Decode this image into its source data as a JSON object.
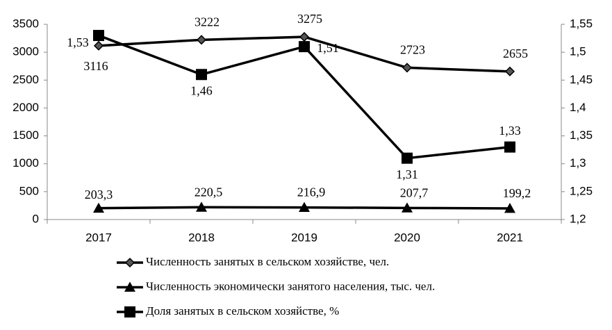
{
  "chart_data": {
    "type": "line",
    "categories": [
      "2017",
      "2018",
      "2019",
      "2020",
      "2021"
    ],
    "series": [
      {
        "name": "Численность занятых в сельском хозяйстве, чел.",
        "color": "#000000",
        "marker": "diamond",
        "axis": "y",
        "values": [
          3116,
          3222,
          3275,
          2723,
          2655
        ]
      },
      {
        "name": "Численность экономически занятого населения, тыс. чел.",
        "color": "#000000",
        "marker": "triangle",
        "axis": "y",
        "values": [
          203.3,
          220.5,
          216.9,
          207.7,
          199.2
        ],
        "value_labels": [
          "203,3",
          "220,5",
          "216,9",
          "207,7",
          "199,2"
        ]
      },
      {
        "name": "Доля занятых в сельском хозяйстве, %",
        "color": "#000000",
        "marker": "square",
        "axis": "y2",
        "values": [
          1.53,
          1.46,
          1.51,
          1.31,
          1.33
        ],
        "value_labels": [
          "1,53",
          "1,46",
          "1,51",
          "1,31",
          "1,33"
        ]
      }
    ],
    "ylim": [
      0,
      3500
    ],
    "yticks": [
      0,
      500,
      1000,
      1500,
      2000,
      2500,
      3000,
      3500
    ],
    "y2lim": [
      1.2,
      1.55
    ],
    "y2ticks": [
      {
        "value": 1.2,
        "label": "1,2"
      },
      {
        "value": 1.25,
        "label": "1,25"
      },
      {
        "value": 1.3,
        "label": "1,3"
      },
      {
        "value": 1.35,
        "label": "1,35"
      },
      {
        "value": 1.4,
        "label": "1,4"
      },
      {
        "value": 1.45,
        "label": "1,45"
      },
      {
        "value": 1.5,
        "label": "1,5"
      },
      {
        "value": 1.55,
        "label": "1,55"
      }
    ],
    "grid": false,
    "legend": "bottom"
  }
}
